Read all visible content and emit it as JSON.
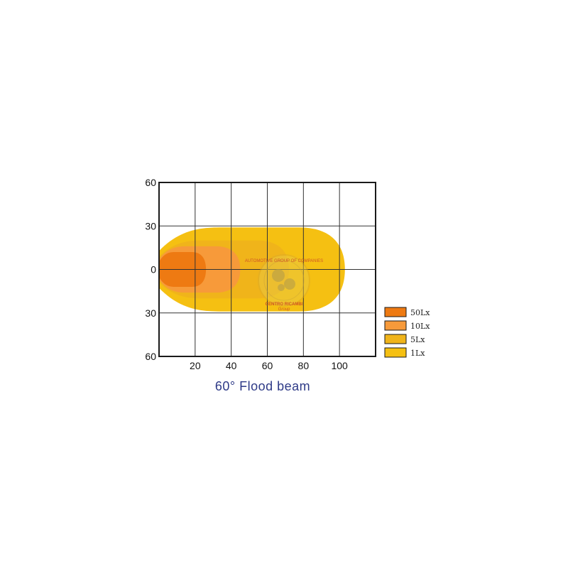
{
  "chart_data": {
    "type": "area",
    "title": "60° Flood beam",
    "xlabel": "",
    "ylabel": "",
    "xlim": [
      0,
      120
    ],
    "ylim": [
      -60,
      60
    ],
    "x_ticks": [
      {
        "value": 0,
        "label": ""
      },
      {
        "value": 20,
        "label": "20"
      },
      {
        "value": 40,
        "label": "40"
      },
      {
        "value": 60,
        "label": "60"
      },
      {
        "value": 80,
        "label": "80"
      },
      {
        "value": 100,
        "label": "100"
      },
      {
        "value": 120,
        "label": ""
      }
    ],
    "y_ticks": [
      {
        "value": 60,
        "label": "60"
      },
      {
        "value": 30,
        "label": "30"
      },
      {
        "value": 0,
        "label": "0"
      },
      {
        "value": -30,
        "label": "30"
      },
      {
        "value": -60,
        "label": "60"
      }
    ],
    "grid": true,
    "legend_position": "right",
    "series": [
      {
        "name": "1Lx",
        "color": "#f5c012",
        "max_distance": 103,
        "half_width": 29
      },
      {
        "name": "5Lx",
        "color": "#f0b41a",
        "max_distance": 72,
        "half_width": 20
      },
      {
        "name": "10Lx",
        "color": "#f79a3a",
        "max_distance": 45,
        "half_width": 16
      },
      {
        "name": "50Lx",
        "color": "#ee7a12",
        "max_distance": 26,
        "half_width": 12
      }
    ],
    "legend": [
      {
        "label": "50Lx",
        "color": "#ee7a12"
      },
      {
        "label": "10Lx",
        "color": "#f79a3a"
      },
      {
        "label": "5Lx",
        "color": "#f0b41a"
      },
      {
        "label": "1Lx",
        "color": "#f5c012"
      }
    ]
  },
  "watermark": {
    "ring_top": "AUTOMOTIVE GROUP OF COMPANIES",
    "text": "CENTRO RICAMBI",
    "subtext": "Group"
  }
}
